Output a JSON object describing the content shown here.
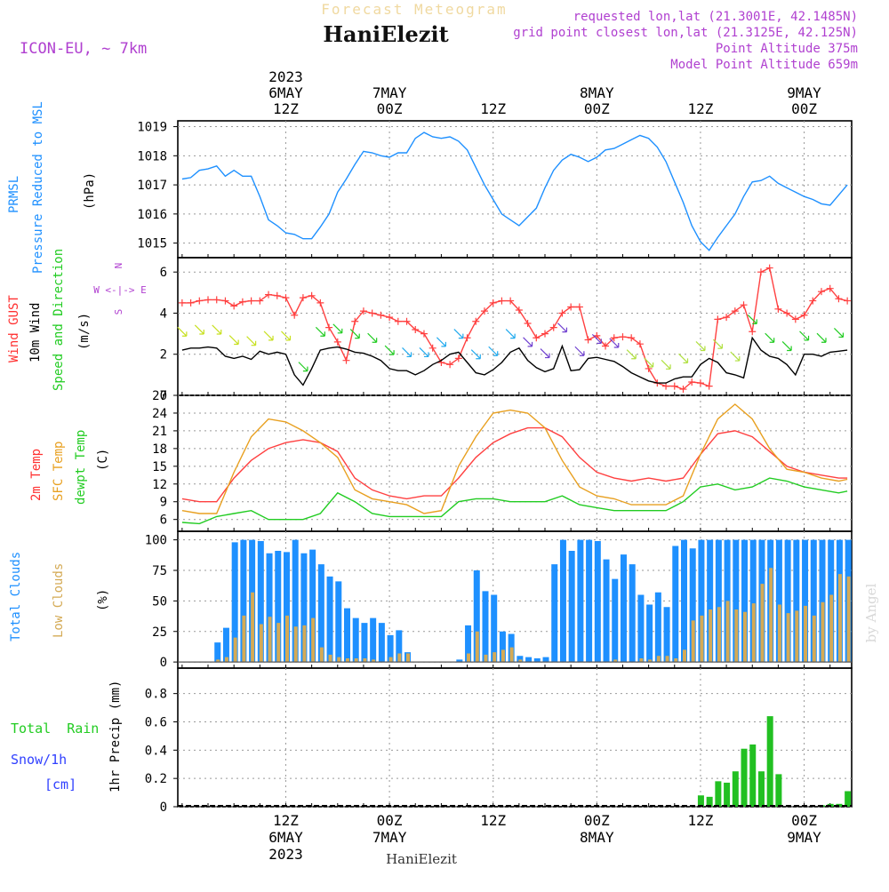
{
  "header": {
    "subtitle": "Forecast Meteogram",
    "location": "HaniElezit",
    "model": "ICON-EU, ~ 7km",
    "requested": "requested lon,lat (21.3001E, 42.1485N)",
    "grid": "grid point closest lon,lat (21.3125E, 42.125N)",
    "point_alt": "Point Altitude 375m",
    "model_alt": "Model Point Altitude 659m",
    "footer": "HaniElezit",
    "watermark": "by Angel"
  },
  "time_axis": {
    "top_labels": [
      {
        "h": 12,
        "lines": [
          "2023",
          "6MAY",
          "12Z"
        ]
      },
      {
        "h": 24,
        "lines": [
          "7MAY",
          "00Z"
        ]
      },
      {
        "h": 36,
        "lines": [
          "12Z"
        ]
      },
      {
        "h": 48,
        "lines": [
          "8MAY",
          "00Z"
        ]
      },
      {
        "h": 60,
        "lines": [
          "12Z"
        ]
      },
      {
        "h": 72,
        "lines": [
          "9MAY",
          "00Z"
        ]
      }
    ],
    "bottom_labels": [
      {
        "h": 12,
        "lines": [
          "12Z",
          "6MAY",
          "2023"
        ]
      },
      {
        "h": 24,
        "lines": [
          "00Z",
          "7MAY"
        ]
      },
      {
        "h": 36,
        "lines": [
          "12Z"
        ]
      },
      {
        "h": 48,
        "lines": [
          "00Z",
          "8MAY"
        ]
      },
      {
        "h": 60,
        "lines": [
          "12Z"
        ]
      },
      {
        "h": 72,
        "lines": [
          "00Z",
          "9MAY"
        ]
      }
    ]
  },
  "panels": {
    "pressure": {
      "title1": "PRMSL",
      "title2": "Pressure Reduced to MSL",
      "units": "(hPa)",
      "ylim": [
        1014.5,
        1019.2
      ],
      "ticks": [
        1015,
        1016,
        1017,
        1018,
        1019
      ]
    },
    "wind": {
      "title_gust": "Wind GUST",
      "title_wind": "10m Wind",
      "title_dir": "Speed and Direction",
      "units": "(m/s)",
      "compass": [
        "N",
        "W <-|-> E",
        "S"
      ],
      "ylim": [
        0,
        6.7
      ],
      "ticks": [
        0,
        2,
        4,
        6
      ]
    },
    "temp": {
      "title_t2m": "2m Temp",
      "title_sfc": "SFC Temp",
      "title_dew": "dewpt Temp",
      "units": "(C)",
      "ylim": [
        4,
        27
      ],
      "ticks": [
        6,
        9,
        12,
        15,
        18,
        21,
        24,
        27
      ]
    },
    "clouds": {
      "title_total": "Total Clouds",
      "title_low": "Low Clouds",
      "units": "(%)",
      "ylim": [
        -5,
        107
      ],
      "ticks": [
        0,
        25,
        50,
        75,
        100
      ]
    },
    "precip": {
      "title_rain": "Total  Rain",
      "title_snow": "Snow/1h",
      "title_cm": "[cm]",
      "title_axis": "1hr Precip (mm)",
      "ylim": [
        0,
        0.98
      ],
      "ticks": [
        0,
        0.2,
        0.4,
        0.6,
        0.8
      ]
    }
  },
  "chart_data": [
    {
      "type": "line",
      "title": "PRMSL Pressure Reduced to MSL",
      "ylabel": "hPa",
      "x_hours": [
        0,
        1,
        2,
        3,
        4,
        5,
        6,
        7,
        8,
        9,
        10,
        11,
        12,
        13,
        14,
        15,
        16,
        17,
        18,
        19,
        20,
        21,
        22,
        23,
        24,
        25,
        26,
        27,
        28,
        29,
        30,
        31,
        32,
        33,
        34,
        35,
        36,
        37,
        38,
        39,
        40,
        41,
        42,
        43,
        44,
        45,
        46,
        47,
        48,
        49,
        50,
        51,
        52,
        53,
        54,
        55,
        56,
        57,
        58,
        59,
        60,
        61,
        62,
        63,
        64,
        65,
        66,
        67,
        68,
        69,
        70,
        71,
        72,
        73,
        74,
        75,
        76,
        77
      ],
      "series": [
        {
          "name": "PRMSL",
          "color": "#1e90ff",
          "values": [
            1017.2,
            1017.25,
            1017.5,
            1017.55,
            1017.65,
            1017.3,
            1017.5,
            1017.3,
            1017.3,
            1016.6,
            1015.8,
            1015.6,
            1015.35,
            1015.3,
            1015.15,
            1015.15,
            1015.55,
            1016.0,
            1016.75,
            1017.2,
            1017.7,
            1018.15,
            1018.1,
            1018.0,
            1017.95,
            1018.1,
            1018.1,
            1018.6,
            1018.8,
            1018.65,
            1018.6,
            1018.65,
            1018.5,
            1018.2,
            1017.6,
            1017.0,
            1016.5,
            1016.0,
            1015.8,
            1015.6,
            1015.9,
            1016.2,
            1016.9,
            1017.5,
            1017.85,
            1018.05,
            1017.95,
            1017.8,
            1017.95,
            1018.2,
            1018.25,
            1018.4,
            1018.55,
            1018.7,
            1018.6,
            1018.3,
            1017.8,
            1017.1,
            1016.4,
            1015.6,
            1015.05,
            1014.75,
            1015.2,
            1015.6,
            1016.0,
            1016.6,
            1017.1,
            1017.15,
            1017.3,
            1017.05,
            1016.9,
            1016.75,
            1016.6,
            1016.5,
            1016.35,
            1016.3,
            1016.65,
            1017.0
          ]
        }
      ]
    },
    {
      "type": "line",
      "title": "Wind GUST / 10m Wind Speed and Direction",
      "ylabel": "m/s",
      "x_hours": [
        0,
        1,
        2,
        3,
        4,
        5,
        6,
        7,
        8,
        9,
        10,
        11,
        12,
        13,
        14,
        15,
        16,
        17,
        18,
        19,
        20,
        21,
        22,
        23,
        24,
        25,
        26,
        27,
        28,
        29,
        30,
        31,
        32,
        33,
        34,
        35,
        36,
        37,
        38,
        39,
        40,
        41,
        42,
        43,
        44,
        45,
        46,
        47,
        48,
        49,
        50,
        51,
        52,
        53,
        54,
        55,
        56,
        57,
        58,
        59,
        60,
        61,
        62,
        63,
        64,
        65,
        66,
        67,
        68,
        69,
        70,
        71,
        72,
        73,
        74,
        75,
        76,
        77
      ],
      "series": [
        {
          "name": "Wind GUST",
          "color": "#ff4040",
          "values": [
            4.5,
            4.5,
            4.6,
            4.65,
            4.65,
            4.6,
            4.35,
            4.55,
            4.6,
            4.6,
            4.9,
            4.85,
            4.75,
            3.9,
            4.75,
            4.85,
            4.5,
            3.3,
            2.6,
            1.7,
            3.6,
            4.1,
            4.0,
            3.9,
            3.8,
            3.6,
            3.6,
            3.2,
            3.0,
            2.3,
            1.6,
            1.5,
            1.8,
            2.8,
            3.6,
            4.1,
            4.5,
            4.6,
            4.6,
            4.15,
            3.5,
            2.8,
            3.0,
            3.3,
            4.0,
            4.3,
            4.3,
            2.7,
            2.9,
            2.4,
            2.8,
            2.85,
            2.8,
            2.5,
            1.3,
            0.6,
            0.45,
            0.45,
            0.3,
            0.65,
            0.6,
            0.45,
            3.7,
            3.8,
            4.1,
            4.4,
            3.1,
            6.0,
            6.2,
            4.2,
            4.0,
            3.7,
            3.9,
            4.6,
            5.05,
            5.2,
            4.7,
            4.6
          ]
        },
        {
          "name": "10m Wind",
          "color": "#000000",
          "values": [
            2.2,
            2.3,
            2.3,
            2.35,
            2.3,
            1.9,
            1.8,
            1.9,
            1.75,
            2.15,
            2.0,
            2.1,
            2.0,
            1.0,
            0.5,
            1.3,
            2.2,
            2.3,
            2.35,
            2.25,
            2.1,
            2.05,
            1.9,
            1.7,
            1.3,
            1.2,
            1.2,
            1.0,
            1.2,
            1.5,
            1.7,
            2.0,
            2.1,
            1.6,
            1.1,
            1.0,
            1.25,
            1.6,
            2.1,
            2.3,
            1.7,
            1.35,
            1.15,
            1.3,
            2.4,
            1.2,
            1.25,
            1.8,
            1.85,
            1.75,
            1.65,
            1.4,
            1.1,
            0.9,
            0.7,
            0.6,
            0.6,
            0.8,
            0.9,
            0.9,
            1.5,
            1.8,
            1.6,
            1.1,
            1.0,
            0.85,
            2.8,
            2.2,
            1.9,
            1.8,
            1.5,
            1.0,
            2.0,
            2.0,
            1.9,
            2.1,
            2.15,
            2.2
          ]
        }
      ]
    },
    {
      "type": "line",
      "title": "2m Temp / SFC Temp / dewpt Temp",
      "ylabel": "C",
      "x_hours": [
        0,
        2,
        4,
        6,
        8,
        10,
        12,
        14,
        16,
        18,
        20,
        22,
        24,
        26,
        28,
        30,
        32,
        34,
        36,
        38,
        40,
        42,
        44,
        46,
        48,
        50,
        52,
        54,
        56,
        58,
        60,
        62,
        64,
        66,
        68,
        70,
        72,
        74,
        76,
        77
      ],
      "series": [
        {
          "name": "2m Temp",
          "color": "#ff4040",
          "values": [
            9.5,
            9.0,
            9.0,
            13.0,
            16.0,
            18.0,
            19.0,
            19.5,
            19.0,
            17.5,
            13.0,
            11.0,
            10.0,
            9.5,
            10.0,
            10.0,
            13.0,
            16.5,
            19.0,
            20.5,
            21.5,
            21.5,
            20.0,
            16.5,
            14.0,
            13.0,
            12.5,
            13.0,
            12.5,
            13.0,
            17.0,
            20.5,
            21.0,
            20.0,
            17.5,
            15.0,
            14.0,
            13.5,
            13.0,
            13.0
          ]
        },
        {
          "name": "SFC Temp",
          "color": "#e8a020",
          "values": [
            7.5,
            7.0,
            7.0,
            14.0,
            20.0,
            23.0,
            22.5,
            21.0,
            19.0,
            16.5,
            11.0,
            9.5,
            9.0,
            8.5,
            7.0,
            7.5,
            15.0,
            20.0,
            24.0,
            24.5,
            24.0,
            21.5,
            16.0,
            11.5,
            10.0,
            9.5,
            8.5,
            8.5,
            8.5,
            10.0,
            17.0,
            23.0,
            25.5,
            23.0,
            18.0,
            14.5,
            14.0,
            13.0,
            12.5,
            12.8
          ]
        },
        {
          "name": "dewpt Temp",
          "color": "#22cc22",
          "values": [
            5.5,
            5.3,
            6.5,
            7.0,
            7.5,
            6.0,
            6.0,
            6.0,
            7.0,
            10.5,
            9.0,
            7.0,
            6.5,
            6.5,
            6.5,
            6.5,
            9.0,
            9.5,
            9.5,
            9.0,
            9.0,
            9.0,
            10.0,
            8.5,
            8.0,
            7.5,
            7.5,
            7.5,
            7.5,
            9.0,
            11.5,
            12.0,
            11.0,
            11.5,
            13.0,
            12.5,
            11.5,
            11.0,
            10.5,
            10.8
          ]
        }
      ]
    },
    {
      "type": "bar",
      "title": "Total Clouds / Low Clouds",
      "ylabel": "%",
      "x_hours": [
        0,
        1,
        2,
        3,
        4,
        5,
        6,
        7,
        8,
        9,
        10,
        11,
        12,
        13,
        14,
        15,
        16,
        17,
        18,
        19,
        20,
        21,
        22,
        23,
        24,
        25,
        26,
        27,
        28,
        29,
        30,
        31,
        32,
        33,
        34,
        35,
        36,
        37,
        38,
        39,
        40,
        41,
        42,
        43,
        44,
        45,
        46,
        47,
        48,
        49,
        50,
        51,
        52,
        53,
        54,
        55,
        56,
        57,
        58,
        59,
        60,
        61,
        62,
        63,
        64,
        65,
        66,
        67,
        68,
        69,
        70,
        71,
        72,
        73,
        74,
        75,
        76,
        77
      ],
      "series": [
        {
          "name": "Total Clouds",
          "color": "#1e90ff",
          "values": [
            0,
            0,
            0,
            0,
            16,
            28,
            98,
            100,
            100,
            99,
            89,
            91,
            90,
            100,
            89,
            92,
            80,
            70,
            66,
            44,
            36,
            32,
            36,
            32,
            22,
            26,
            8,
            0,
            0,
            0,
            0,
            0,
            2,
            30,
            75,
            58,
            55,
            25,
            23,
            5,
            4,
            3,
            4,
            80,
            100,
            91,
            100,
            100,
            99,
            84,
            68,
            88,
            80,
            55,
            47,
            57,
            45,
            95,
            100,
            93,
            100,
            100,
            100,
            100,
            100,
            100,
            100,
            100,
            100,
            100,
            100,
            100,
            100,
            100,
            100,
            100,
            100,
            100
          ]
        },
        {
          "name": "Low Clouds",
          "color": "#d4aa55",
          "values": [
            0,
            0,
            0,
            0,
            2,
            4,
            20,
            38,
            57,
            31,
            37,
            32,
            38,
            29,
            30,
            36,
            12,
            6,
            4,
            3,
            3,
            3,
            2,
            0,
            4,
            7,
            7,
            0,
            0,
            0,
            0,
            0,
            0,
            7,
            25,
            6,
            8,
            10,
            12,
            2,
            0,
            0,
            0,
            0,
            0,
            0,
            0,
            0,
            0,
            0,
            2,
            0,
            0,
            3,
            2,
            5,
            5,
            3,
            10,
            34,
            38,
            43,
            45,
            50,
            43,
            41,
            48,
            64,
            77,
            47,
            40,
            42,
            46,
            38,
            49,
            55,
            72,
            70
          ]
        }
      ]
    },
    {
      "type": "bar",
      "title": "Total Rain / Snow 1h",
      "ylabel": "1hr Precip (mm)",
      "x_hours": [
        60,
        61,
        62,
        63,
        64,
        65,
        66,
        67,
        68,
        69,
        72,
        73,
        74,
        75,
        76,
        77
      ],
      "series": [
        {
          "name": "Total Rain",
          "color": "#22c022",
          "values": [
            0.08,
            0.07,
            0.18,
            0.17,
            0.25,
            0.41,
            0.44,
            0.25,
            0.64,
            0.23,
            0.0,
            0.0,
            0.01,
            0.02,
            0.02,
            0.11
          ]
        }
      ]
    }
  ]
}
